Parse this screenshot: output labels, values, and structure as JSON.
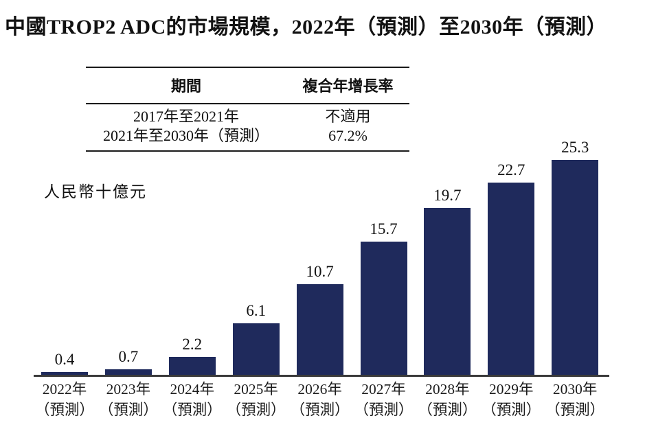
{
  "title": "中國TROP2 ADC的市場規模，2022年（預測）至2030年（預測）",
  "table": {
    "headers": [
      "期間",
      "複合年增長率"
    ],
    "rows": [
      [
        "2017年至2021年",
        "不適用"
      ],
      [
        "2021年至2030年（預測）",
        "67.2%"
      ]
    ]
  },
  "chart_data": {
    "type": "bar",
    "title": "中國TROP2 ADC的市場規模，2022年（預測）至2030年（預測）",
    "ylabel": "人民幣十億元",
    "xlabel": "",
    "categories": [
      "2022年",
      "2023年",
      "2024年",
      "2025年",
      "2026年",
      "2027年",
      "2028年",
      "2029年",
      "2030年"
    ],
    "category_note": "（預測）",
    "values": [
      0.4,
      0.7,
      2.2,
      6.1,
      10.7,
      15.7,
      19.7,
      22.7,
      25.3
    ],
    "data_labels": true,
    "bar_color": "#1f2a5c",
    "axis_color": "#3a3a3a",
    "ylim": [
      0,
      26
    ],
    "grid": false,
    "legend": false
  }
}
